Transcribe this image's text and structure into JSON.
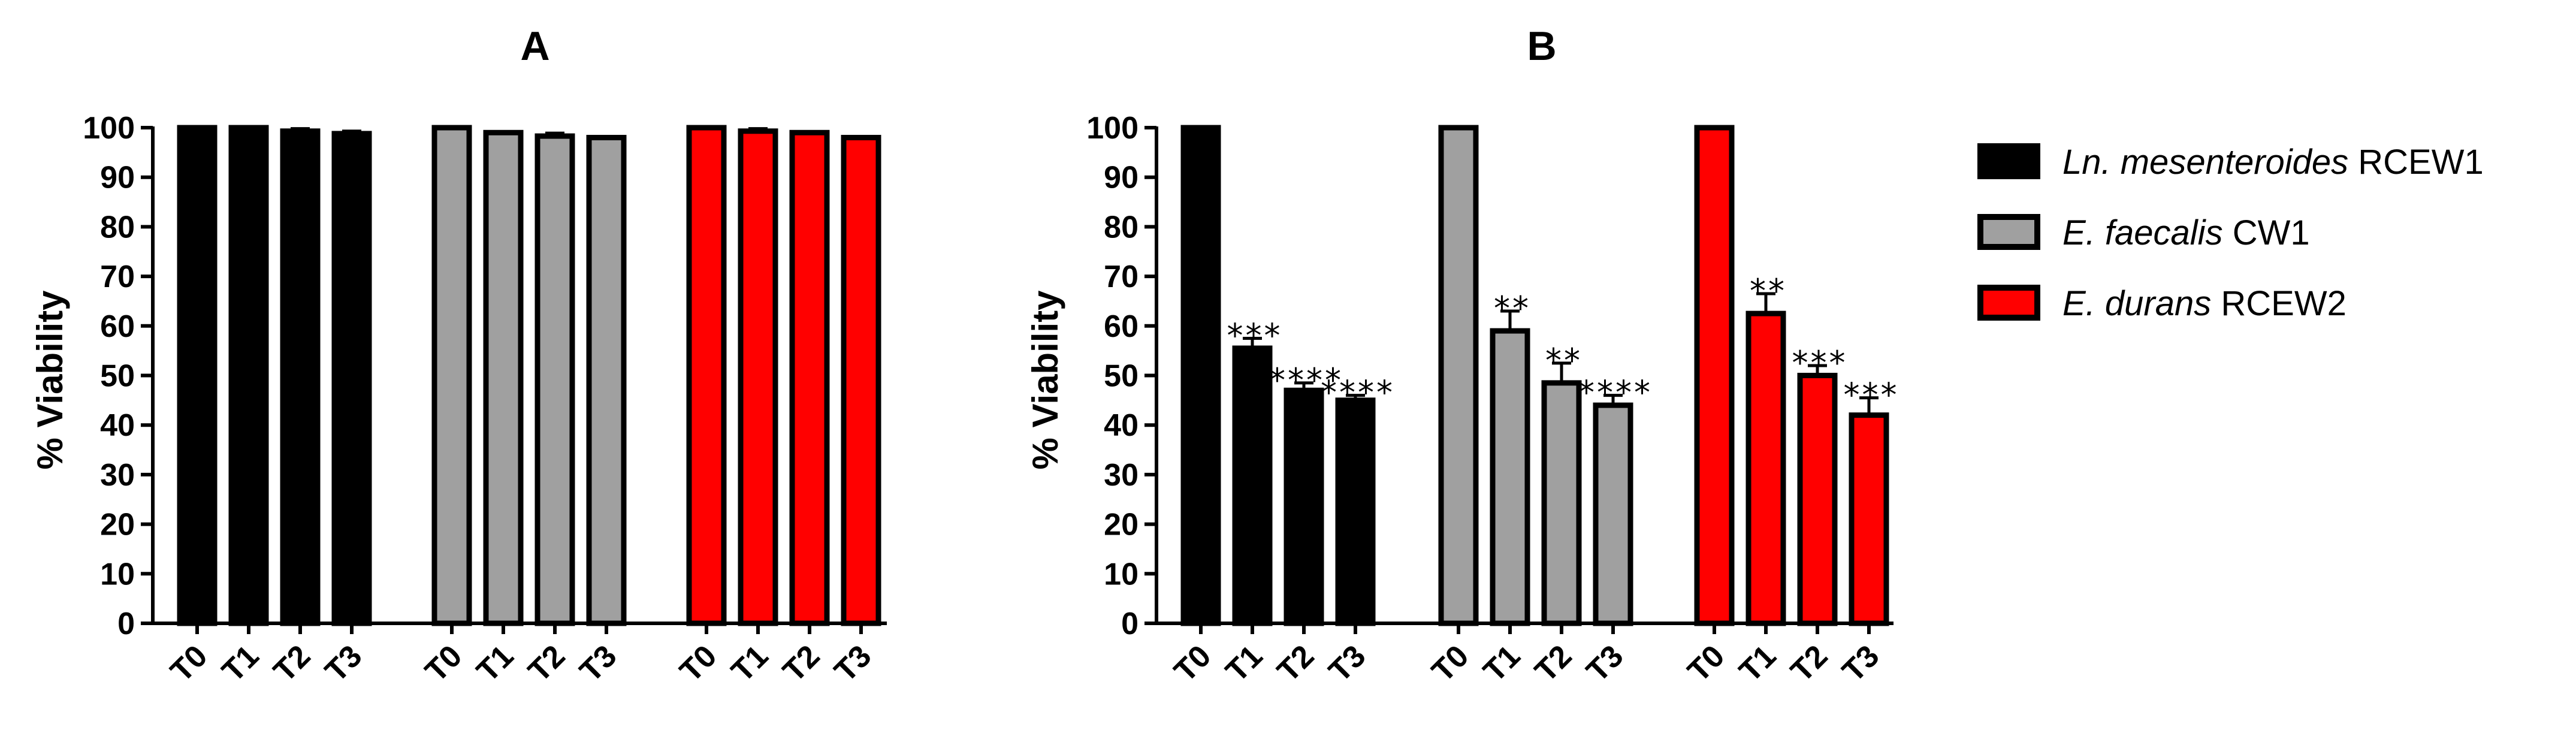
{
  "figure": {
    "legend": [
      {
        "species": "Ln. mesenteroides",
        "strain": " RCEW1",
        "color": "#000000"
      },
      {
        "species": "E. faecalis",
        "strain": " CW1",
        "color": "#a0a0a0"
      },
      {
        "species": "E. durans",
        "strain": " RCEW2",
        "color": "#ff0000"
      }
    ]
  },
  "chart_data": [
    {
      "type": "bar",
      "title": "A",
      "xlabel": "",
      "ylabel": "% Viability",
      "ylim": [
        0,
        100
      ],
      "yticks": [
        0,
        10,
        20,
        30,
        40,
        50,
        60,
        70,
        80,
        90,
        100
      ],
      "categories": [
        "T0",
        "T1",
        "T2",
        "T3"
      ],
      "series": [
        {
          "name": "Ln. mesenteroides RCEW1",
          "color": "#000000",
          "values": [
            100,
            100,
            99.3,
            98.8
          ],
          "errors": [
            0,
            0,
            0.5,
            0.5
          ],
          "significance": [
            "",
            "",
            "",
            ""
          ]
        },
        {
          "name": "E. faecalis CW1",
          "color": "#a0a0a0",
          "values": [
            100,
            99,
            98.3,
            98
          ],
          "errors": [
            0,
            0,
            0.6,
            0
          ],
          "significance": [
            "",
            "",
            "",
            ""
          ]
        },
        {
          "name": "E. durans RCEW2",
          "color": "#ff0000",
          "values": [
            100,
            99.3,
            99,
            98
          ],
          "errors": [
            0,
            0.5,
            0,
            0
          ],
          "significance": [
            "",
            "",
            "",
            ""
          ]
        }
      ]
    },
    {
      "type": "bar",
      "title": "B",
      "xlabel": "",
      "ylabel": "% Viability",
      "ylim": [
        0,
        100
      ],
      "yticks": [
        0,
        10,
        20,
        30,
        40,
        50,
        60,
        70,
        80,
        90,
        100
      ],
      "categories": [
        "T0",
        "T1",
        "T2",
        "T3"
      ],
      "series": [
        {
          "name": "Ln. mesenteroides RCEW1",
          "color": "#000000",
          "values": [
            100,
            55.5,
            47,
            45
          ],
          "errors": [
            0,
            2,
            1.5,
            1
          ],
          "significance": [
            "",
            "***",
            "****",
            "****"
          ]
        },
        {
          "name": "E. faecalis CW1",
          "color": "#a0a0a0",
          "values": [
            100,
            59,
            48.5,
            44
          ],
          "errors": [
            0,
            4,
            4,
            2
          ],
          "significance": [
            "",
            "**",
            "**",
            "****"
          ]
        },
        {
          "name": "E. durans RCEW2",
          "color": "#ff0000",
          "values": [
            100,
            62.5,
            50,
            42
          ],
          "errors": [
            0,
            4,
            2,
            3.5
          ],
          "significance": [
            "",
            "**",
            "***",
            "***"
          ]
        }
      ]
    }
  ]
}
